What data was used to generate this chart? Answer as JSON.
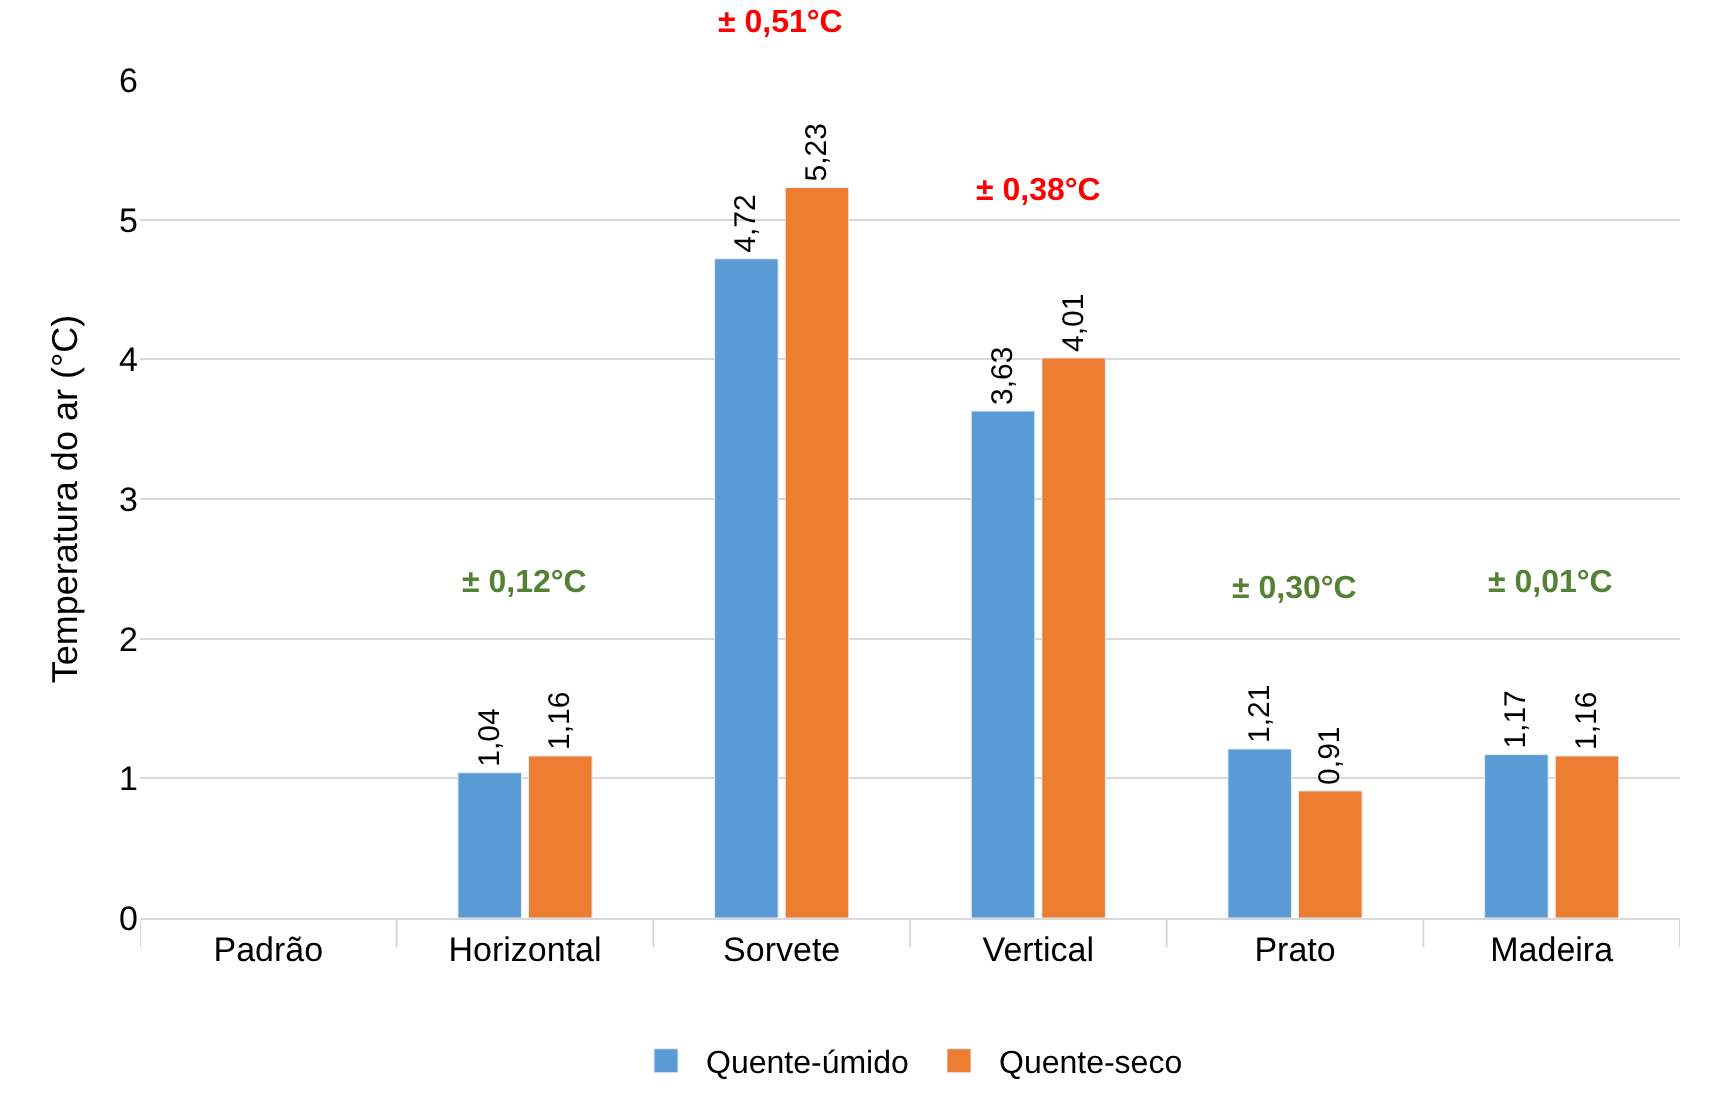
{
  "chart_data": {
    "type": "bar",
    "ylabel": "Temperatura do ar (°C)",
    "categories": [
      "Padrão",
      "Horizontal",
      "Sorvete",
      "Vertical",
      "Prato",
      "Madeira"
    ],
    "series": [
      {
        "name": "Quente-úmido",
        "color": "#5b9bd5",
        "values": [
          null,
          1.04,
          4.72,
          3.63,
          1.21,
          1.17
        ],
        "value_labels": [
          null,
          "1,04",
          "4,72",
          "3,63",
          "1,21",
          "1,17"
        ]
      },
      {
        "name": "Quente-seco",
        "color": "#ed7d31",
        "values": [
          null,
          1.16,
          5.23,
          4.01,
          0.91,
          1.16
        ],
        "value_labels": [
          null,
          "1,16",
          "5,23",
          "4,01",
          "0,91",
          "1,16"
        ]
      }
    ],
    "annotations": [
      "± 0,12°C",
      "± 0,51°C",
      "± 0,38°C",
      "± 0,30°C",
      "± 0,01°C"
    ],
    "ylim": [
      0,
      6
    ],
    "yticks": [
      0,
      1,
      2,
      3,
      4,
      5,
      6
    ],
    "grid": "y",
    "legend": "bottom"
  }
}
